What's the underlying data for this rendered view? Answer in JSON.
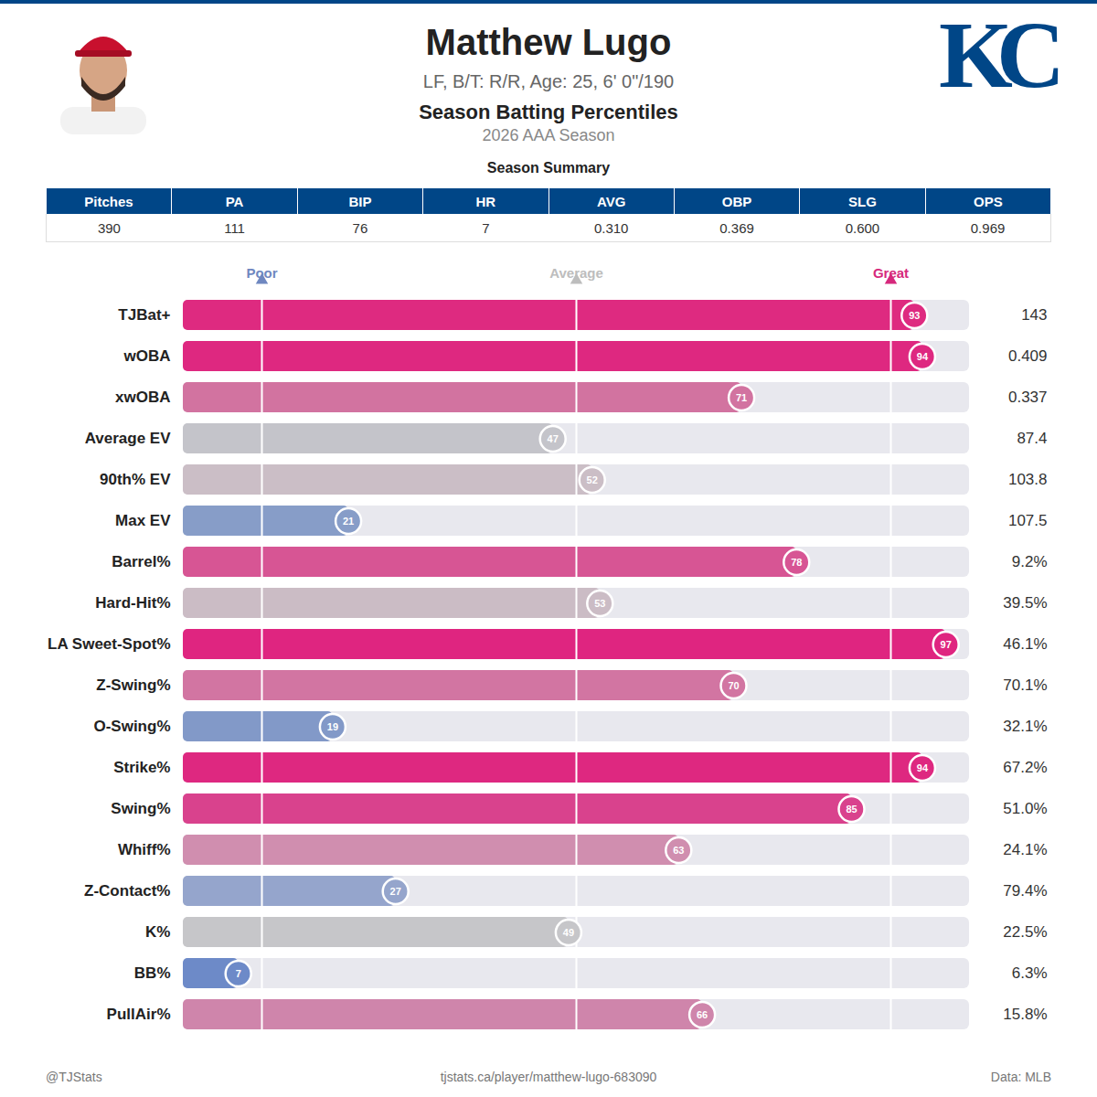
{
  "header": {
    "name": "Matthew Lugo",
    "info": "LF, B/T: R/R, Age: 25, 6' 0\"/190",
    "title": "Season Batting Percentiles",
    "subtitle": "2026 AAA Season",
    "logo": "KC"
  },
  "summary": {
    "title": "Season Summary",
    "columns": [
      "Pitches",
      "PA",
      "BIP",
      "HR",
      "AVG",
      "OBP",
      "SLG",
      "OPS"
    ],
    "values": [
      "390",
      "111",
      "76",
      "7",
      "0.310",
      "0.369",
      "0.600",
      "0.969"
    ]
  },
  "chart_data": {
    "type": "bar",
    "orientation": "horizontal",
    "categories": [
      "TJBat+",
      "wOBA",
      "xwOBA",
      "Average EV",
      "90th% EV",
      "Max EV",
      "Barrel%",
      "Hard-Hit%",
      "LA Sweet-Spot%",
      "Z-Swing%",
      "O-Swing%",
      "Strike%",
      "Swing%",
      "Whiff%",
      "Z-Contact%",
      "K%",
      "BB%",
      "PullAir%"
    ],
    "values": [
      93,
      94,
      71,
      47,
      52,
      21,
      78,
      53,
      97,
      70,
      19,
      94,
      85,
      63,
      27,
      49,
      7,
      66
    ],
    "colors": [
      "#de2a80",
      "#de2880",
      "#d273a0",
      "#c4c4ca",
      "#cbbec6",
      "#879dc8",
      "#d75594",
      "#cbbcc5",
      "#df2580",
      "#d275a2",
      "#8299c8",
      "#de2880",
      "#d9428d",
      "#d08eaf",
      "#95a5cc",
      "#c6c6c9",
      "#6d8ac8",
      "#cf85ab"
    ],
    "stat_values": [
      "143",
      "0.409",
      "0.337",
      "87.4",
      "103.8",
      "107.5",
      "9.2%",
      "39.5%",
      "46.1%",
      "70.1%",
      "32.1%",
      "67.2%",
      "51.0%",
      "24.1%",
      "79.4%",
      "22.5%",
      "6.3%",
      "15.8%"
    ],
    "data_labels": true,
    "tick_labels": "y",
    "xlim": [
      0,
      100
    ],
    "reference_lines": [
      {
        "value": 10,
        "label": "Poor",
        "color": "#6f87c0"
      },
      {
        "value": 50,
        "label": "Average",
        "color": "#bdbdbd"
      },
      {
        "value": 90,
        "label": "Great",
        "color": "#d6287c"
      }
    ]
  },
  "footer": {
    "left": "@TJStats",
    "center": "tjstats.ca/player/matthew-lugo-683090",
    "right": "Data: MLB"
  }
}
